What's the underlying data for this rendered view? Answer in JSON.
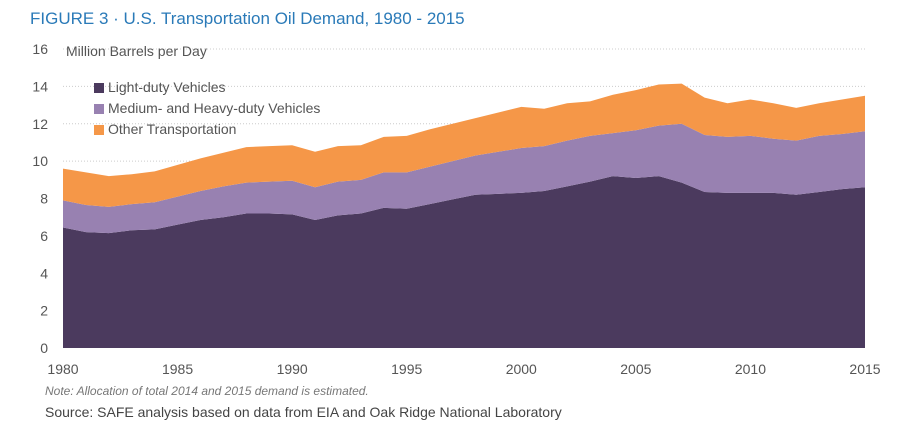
{
  "chart_data": {
    "type": "area",
    "stacked": true,
    "title": "FIGURE 3 · U.S. Transportation Oil Demand, 1980 - 2015",
    "ylabel": "Million Barrels per Day",
    "xlabel": "",
    "ylim": [
      0,
      16
    ],
    "yticks": [
      0,
      2,
      4,
      6,
      8,
      10,
      12,
      14,
      16
    ],
    "xticks": [
      1980,
      1985,
      1990,
      1995,
      2000,
      2005,
      2010,
      2015
    ],
    "grid": "horizontal dotted",
    "legend_position": "top-left",
    "x": [
      1980,
      1981,
      1982,
      1983,
      1984,
      1985,
      1986,
      1987,
      1988,
      1989,
      1990,
      1991,
      1992,
      1993,
      1994,
      1995,
      1996,
      1997,
      1998,
      1999,
      2000,
      2001,
      2002,
      2003,
      2004,
      2005,
      2006,
      2007,
      2008,
      2009,
      2010,
      2011,
      2012,
      2013,
      2014,
      2015
    ],
    "series": [
      {
        "name": "Light-duty Vehicles",
        "color": "#4b3a5e",
        "values": [
          6.45,
          6.2,
          6.15,
          6.3,
          6.35,
          6.6,
          6.85,
          7.0,
          7.2,
          7.2,
          7.15,
          6.85,
          7.1,
          7.2,
          7.5,
          7.45,
          7.7,
          7.95,
          8.2,
          8.25,
          8.3,
          8.4,
          8.65,
          8.9,
          9.2,
          9.1,
          9.2,
          8.85,
          8.35,
          8.3,
          8.3,
          8.3,
          8.2,
          8.35,
          8.5,
          8.6
        ]
      },
      {
        "name": "Medium- and Heavy-duty Vehicles",
        "color": "#9881b1",
        "values": [
          1.45,
          1.45,
          1.4,
          1.4,
          1.45,
          1.5,
          1.55,
          1.65,
          1.65,
          1.7,
          1.8,
          1.75,
          1.8,
          1.8,
          1.9,
          1.95,
          2.0,
          2.05,
          2.1,
          2.25,
          2.4,
          2.4,
          2.45,
          2.45,
          2.3,
          2.55,
          2.7,
          3.15,
          3.05,
          3.0,
          3.05,
          2.9,
          2.9,
          3.0,
          2.95,
          3.0
        ]
      },
      {
        "name": "Other Transportation",
        "color": "#f59748",
        "values": [
          1.7,
          1.75,
          1.65,
          1.6,
          1.65,
          1.7,
          1.75,
          1.8,
          1.9,
          1.9,
          1.9,
          1.9,
          1.9,
          1.85,
          1.9,
          1.95,
          2.0,
          2.0,
          2.0,
          2.1,
          2.2,
          2.0,
          2.0,
          1.85,
          2.05,
          2.15,
          2.2,
          2.15,
          2.0,
          1.8,
          1.95,
          1.9,
          1.75,
          1.75,
          1.85,
          1.9
        ]
      }
    ]
  },
  "note": "Note: Allocation of total 2014 and 2015 demand is estimated.",
  "source": "Source: SAFE analysis based on data from EIA and Oak Ridge National Laboratory"
}
